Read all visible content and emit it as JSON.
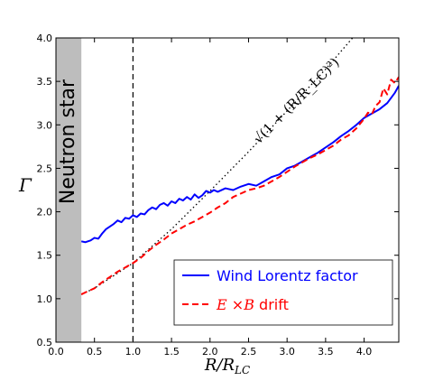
{
  "chart_data": {
    "type": "line",
    "xlabel": "R/R_LC",
    "ylabel": "Γ",
    "xlim": [
      0.0,
      4.45
    ],
    "ylim": [
      0.5,
      4.0
    ],
    "xticks": [
      "0.0",
      "0.5",
      "1.0",
      "1.5",
      "2.0",
      "2.5",
      "3.0",
      "3.5",
      "4.0"
    ],
    "yticks": [
      "0.5",
      "1.0",
      "1.5",
      "2.0",
      "2.5",
      "3.0",
      "3.5",
      "4.0"
    ],
    "grid": false,
    "legend_position": "lower-right",
    "neutron_star": {
      "label": "Neutron star",
      "x_range": [
        0.0,
        0.33
      ],
      "color": "#bdbdbd"
    },
    "light_cylinder_line": {
      "x": 1.0,
      "style": "dashed",
      "color": "#000000"
    },
    "analytic_curve": {
      "label": "√(1 + (R/R_LC)²)",
      "style": "dotted",
      "color": "#000000",
      "x": [
        0.33,
        0.5,
        1.0,
        1.5,
        2.0,
        2.5,
        3.0,
        3.5,
        3.85
      ],
      "y": [
        1.05,
        1.12,
        1.41,
        1.8,
        2.24,
        2.69,
        3.16,
        3.64,
        4.0
      ]
    },
    "series": [
      {
        "name": "Wind Lorentz factor",
        "color": "#0000ff",
        "style": "solid",
        "x": [
          0.33,
          0.38,
          0.45,
          0.5,
          0.55,
          0.6,
          0.65,
          0.7,
          0.75,
          0.8,
          0.85,
          0.9,
          0.95,
          1.0,
          1.05,
          1.1,
          1.15,
          1.2,
          1.25,
          1.3,
          1.35,
          1.4,
          1.45,
          1.5,
          1.55,
          1.6,
          1.65,
          1.7,
          1.75,
          1.8,
          1.85,
          1.9,
          1.95,
          2.0,
          2.05,
          2.1,
          2.2,
          2.3,
          2.4,
          2.5,
          2.6,
          2.7,
          2.8,
          2.9,
          3.0,
          3.1,
          3.2,
          3.3,
          3.4,
          3.5,
          3.6,
          3.7,
          3.8,
          3.9,
          4.0,
          4.1,
          4.2,
          4.3,
          4.4,
          4.45
        ],
        "y": [
          1.66,
          1.65,
          1.67,
          1.7,
          1.69,
          1.75,
          1.8,
          1.83,
          1.86,
          1.9,
          1.88,
          1.93,
          1.92,
          1.96,
          1.94,
          1.98,
          1.97,
          2.02,
          2.05,
          2.03,
          2.08,
          2.1,
          2.07,
          2.12,
          2.1,
          2.15,
          2.13,
          2.17,
          2.14,
          2.2,
          2.16,
          2.19,
          2.24,
          2.22,
          2.25,
          2.23,
          2.27,
          2.25,
          2.29,
          2.32,
          2.3,
          2.35,
          2.4,
          2.43,
          2.5,
          2.53,
          2.58,
          2.63,
          2.68,
          2.74,
          2.8,
          2.87,
          2.93,
          3.0,
          3.08,
          3.13,
          3.18,
          3.25,
          3.37,
          3.45
        ]
      },
      {
        "name": "E×B drift",
        "color": "#ff0000",
        "style": "dashed",
        "x": [
          0.33,
          0.4,
          0.5,
          0.6,
          0.7,
          0.8,
          0.9,
          1.0,
          1.1,
          1.2,
          1.3,
          1.4,
          1.5,
          1.6,
          1.7,
          1.8,
          1.9,
          2.0,
          2.1,
          2.2,
          2.3,
          2.4,
          2.5,
          2.6,
          2.7,
          2.8,
          2.9,
          3.0,
          3.1,
          3.2,
          3.3,
          3.4,
          3.5,
          3.6,
          3.7,
          3.8,
          3.9,
          4.0,
          4.05,
          4.1,
          4.15,
          4.2,
          4.25,
          4.3,
          4.35,
          4.4,
          4.45
        ],
        "y": [
          1.05,
          1.08,
          1.12,
          1.19,
          1.25,
          1.31,
          1.36,
          1.41,
          1.47,
          1.55,
          1.62,
          1.68,
          1.75,
          1.8,
          1.85,
          1.89,
          1.94,
          1.99,
          2.05,
          2.1,
          2.17,
          2.21,
          2.25,
          2.27,
          2.3,
          2.35,
          2.4,
          2.46,
          2.52,
          2.57,
          2.62,
          2.66,
          2.71,
          2.76,
          2.83,
          2.88,
          2.96,
          3.07,
          3.14,
          3.12,
          3.22,
          3.26,
          3.42,
          3.35,
          3.52,
          3.48,
          3.55
        ]
      }
    ]
  }
}
